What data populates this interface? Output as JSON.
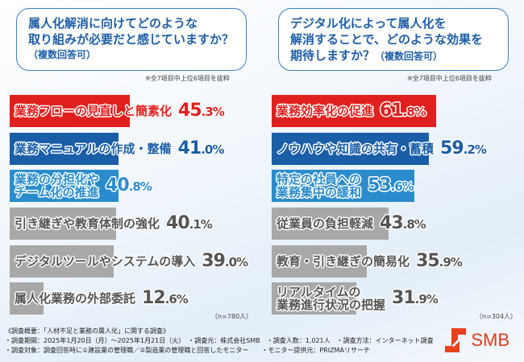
{
  "colors": {
    "red": "#e0201e",
    "dark_blue": "#1a5ea8",
    "light_blue": "#2a8ccc",
    "gray": "#a8a8a8",
    "gray_text": "#555555"
  },
  "left": {
    "question": [
      "属人化解消に向けてどのような",
      "取り組みが必要だと感じていますか？"
    ],
    "question_sub": "（複数回答可）",
    "note": "※全7項目中上位6項目を抜粋",
    "n": "（n=780人）"
  },
  "right": {
    "question": [
      "デジタル化によって属人化を",
      "解消することで、どのような効果を"
    ],
    "question_line3": "期待しますか？",
    "question_sub": "（複数回答可）",
    "note": "※全7項目中上位6項目を抜粋",
    "n": "（n=304人）"
  },
  "chart_data": [
    {
      "type": "bar",
      "orientation": "horizontal",
      "unit": "%",
      "categories": [
        "業務フローの見直しと簡素化",
        "業務マニュアルの作成・整備",
        "業務の分担化やチーム化の推進",
        "引き継ぎや教育体制の強化",
        "デジタルツールやシステムの導入",
        "属人化業務の外部委託"
      ],
      "labels": [
        [
          "業務フローの見直しと簡素化"
        ],
        [
          "業務マニュアルの作成・整備"
        ],
        [
          "業務の分担化や",
          "チーム化の推進"
        ],
        [
          "引き継ぎや教育体制の強化"
        ],
        [
          "デジタルツールやシステムの導入"
        ],
        [
          "属人化業務の外部委託"
        ]
      ],
      "values": [
        45.3,
        41.0,
        40.8,
        40.1,
        39.0,
        12.6
      ],
      "value_labels": [
        [
          "45",
          ".3%"
        ],
        [
          "41",
          ".0%"
        ],
        [
          "40",
          ".8%"
        ],
        [
          "40",
          ".1%"
        ],
        [
          "39",
          ".0%"
        ],
        [
          "12",
          ".6%"
        ]
      ],
      "bar_colors": [
        "red",
        "dark_blue",
        "light_blue",
        "gray",
        "gray",
        "gray"
      ]
    },
    {
      "type": "bar",
      "orientation": "horizontal",
      "unit": "%",
      "categories": [
        "業務効率化の促進",
        "ノウハウや知識の共有・蓄積",
        "特定の社員への業務集中の緩和",
        "従業員の負担軽減",
        "教育・引き継ぎの簡易化",
        "リアルタイムの業務進行状況の把握"
      ],
      "labels": [
        [
          "業務効率化の促進"
        ],
        [
          "ノウハウや知識の共有・蓄積"
        ],
        [
          "特定の社員への",
          "業務集中の緩和"
        ],
        [
          "従業員の負担軽減"
        ],
        [
          "教育・引き継ぎの簡易化"
        ],
        [
          "リアルタイムの",
          "業務進行状況の把握"
        ]
      ],
      "values": [
        61.8,
        59.2,
        53.6,
        43.8,
        35.9,
        31.9
      ],
      "value_labels": [
        [
          "61",
          ".8%"
        ],
        [
          "59",
          ".2%"
        ],
        [
          "53",
          ".6%"
        ],
        [
          "43",
          ".8%"
        ],
        [
          "35",
          ".9%"
        ],
        [
          "31",
          ".9%"
        ]
      ],
      "bar_colors": [
        "red",
        "dark_blue",
        "light_blue",
        "gray",
        "gray",
        "gray"
      ]
    }
  ],
  "footer": {
    "lines": [
      "《調査概要：「人材不足と業務の属人化」に関する調査》",
      "・調査期間：2025年1月20日（月）～2025年1月21日（火）　・調査元：株式会社SMB　・調査人数：1,021人　・調査方法：インターネット調査",
      "・調査対象：調査回答時に①建設業の管理職／②製造業の管理職と回答したモニター　　・モニター提供元：PRIZMAリサーチ"
    ]
  },
  "logo": {
    "text": "SMB"
  }
}
